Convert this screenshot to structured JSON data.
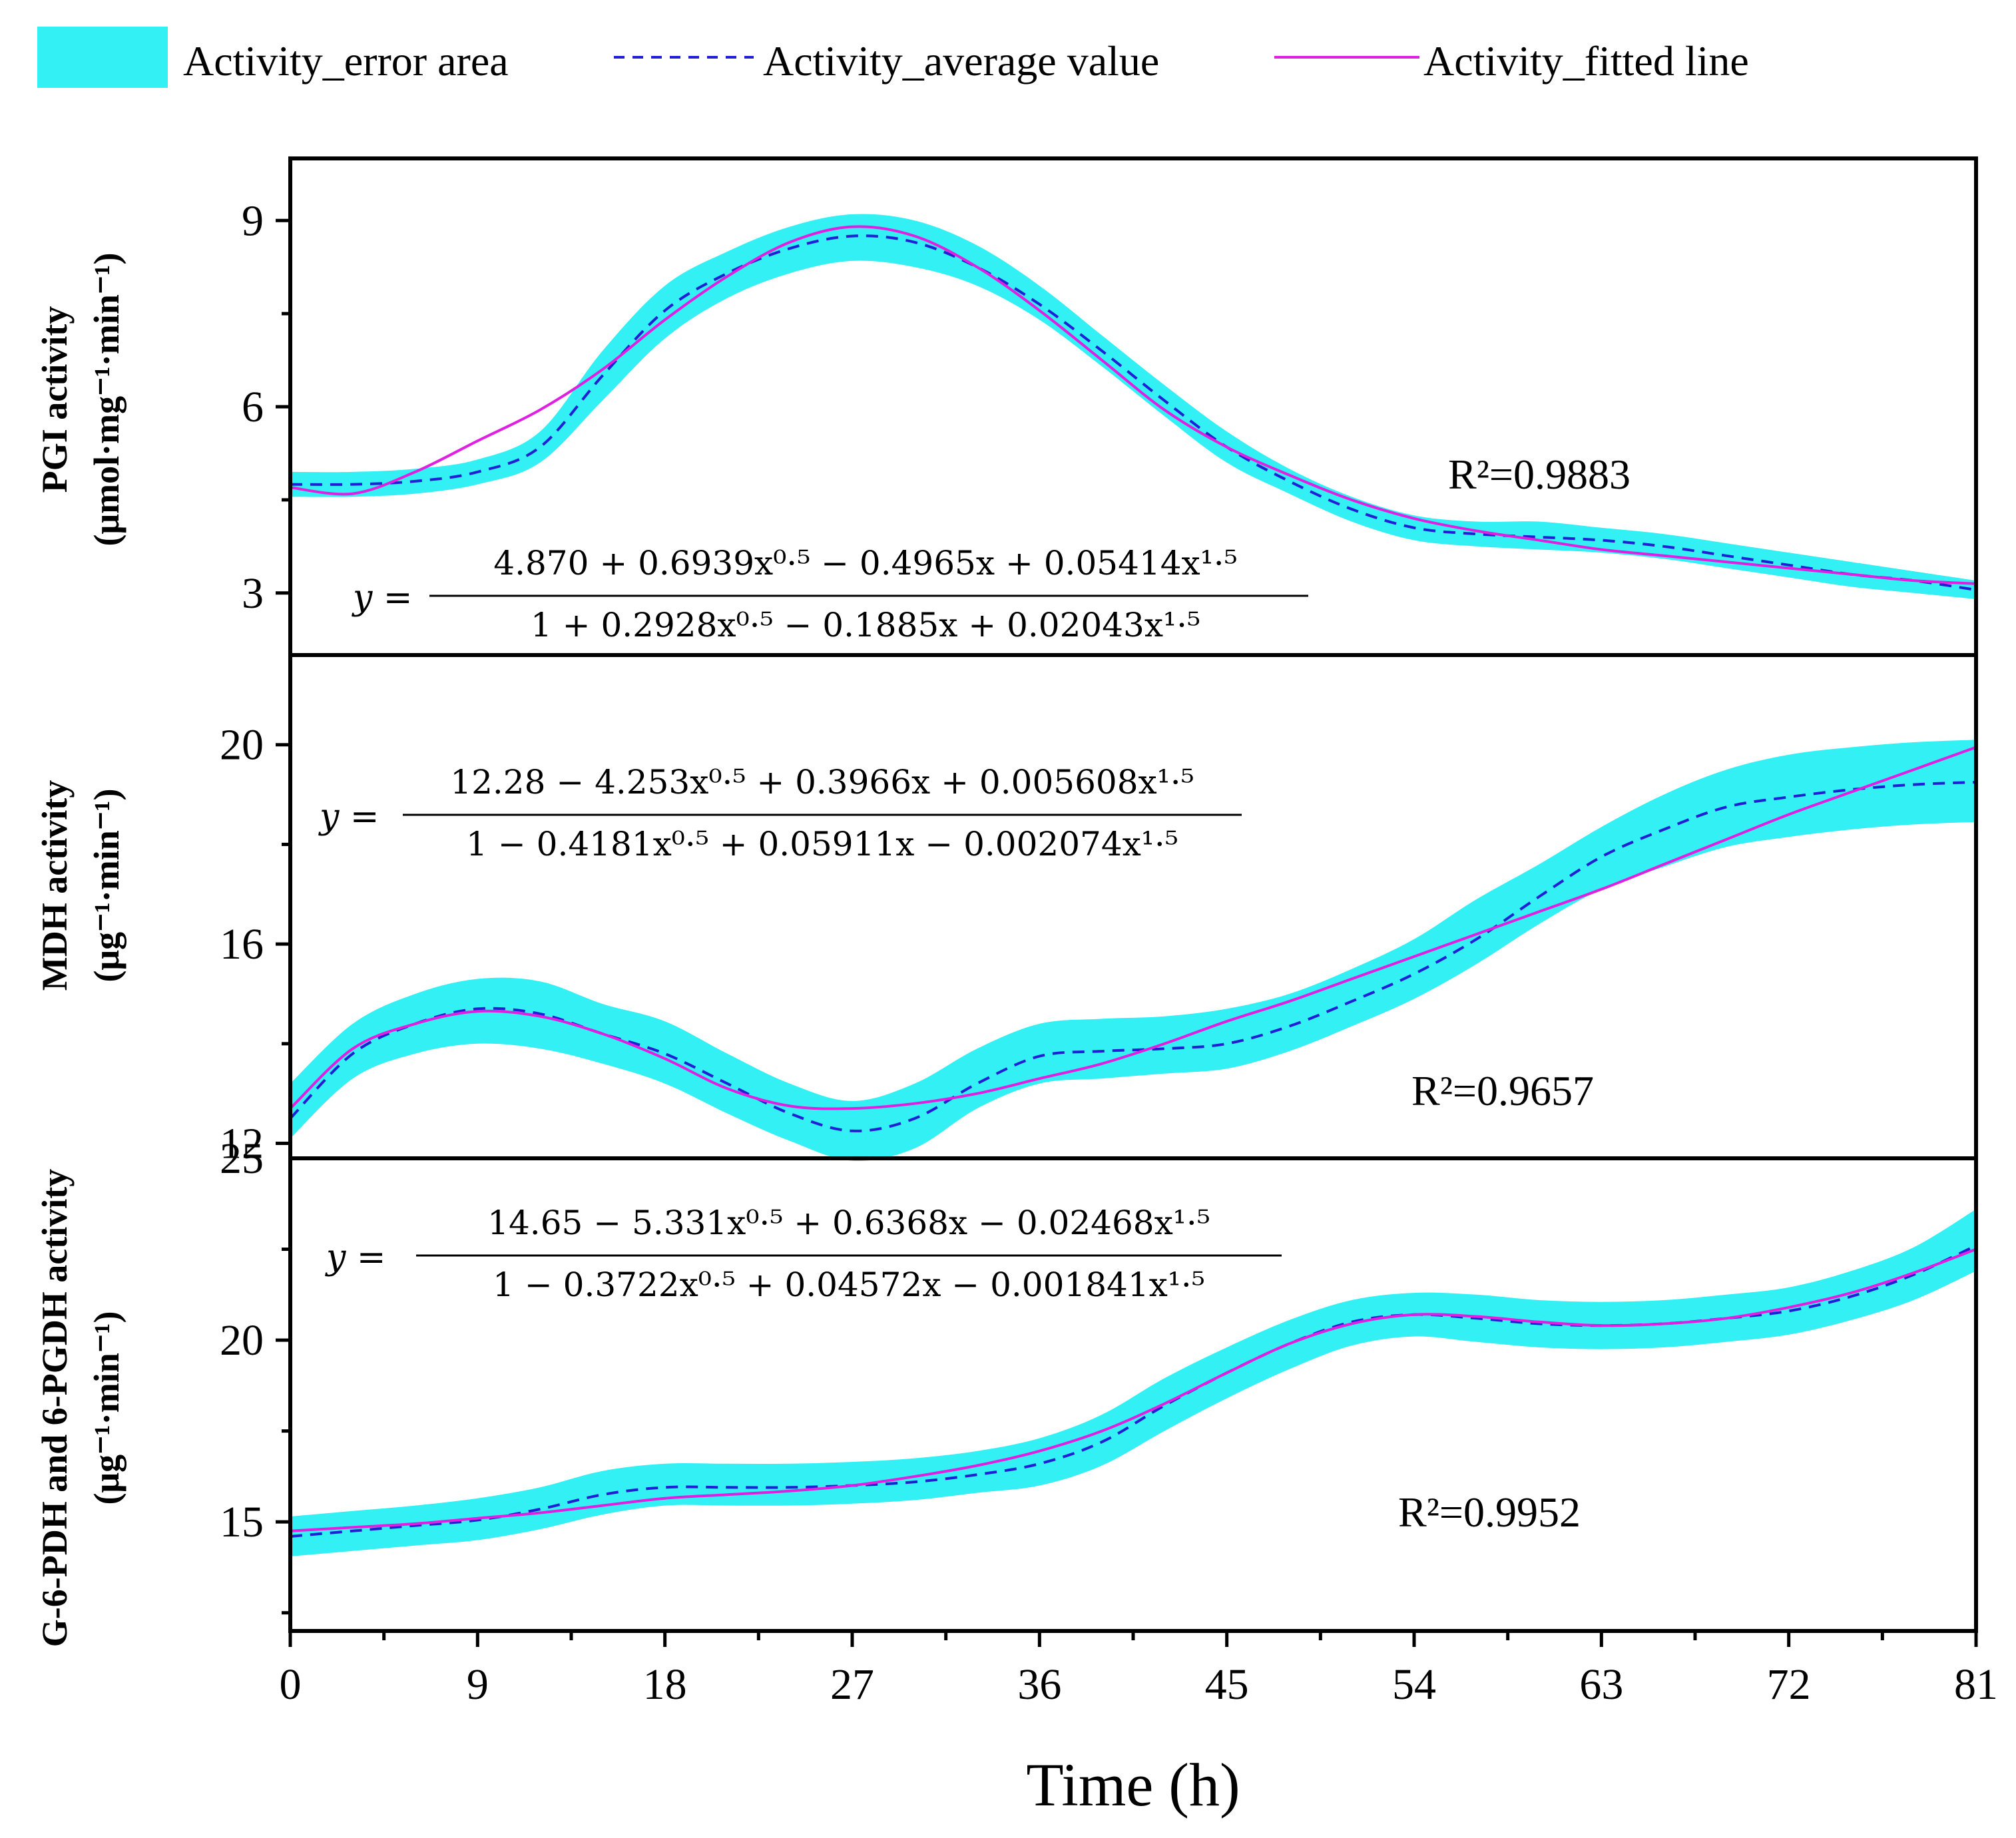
{
  "colors": {
    "error_area": "#33f0f4",
    "average": "#1f1fd6",
    "fitted": "#e020e0",
    "axis": "#000000"
  },
  "legend": {
    "error_area_label": "Activity_error area",
    "average_label": "Activity_average value",
    "fitted_label": "Activity_fitted line"
  },
  "xaxis": {
    "label": "Time (h)",
    "ticks": [
      "0",
      "9",
      "18",
      "27",
      "36",
      "45",
      "54",
      "63",
      "72",
      "81"
    ]
  },
  "chart_data": [
    {
      "type": "area",
      "name": "PGI",
      "ylabel_line1": "PGI activity",
      "ylabel_line2": "(μmol·mg⁻¹·min⁻¹)",
      "xlim": [
        0,
        81
      ],
      "ylim": [
        2,
        10
      ],
      "yticks": [
        3,
        6,
        9
      ],
      "ytick_labels": [
        "3",
        "6",
        "9"
      ],
      "r2": "R²=0.9883",
      "equation": {
        "lhs": "y =",
        "numerator": "4.870 + 0.6939x⁰·⁵ − 0.4965x + 0.05414x¹·⁵",
        "denominator": "1 + 0.2928x⁰·⁵ − 0.1885x + 0.02043x¹·⁵"
      },
      "x": [
        0,
        3,
        6,
        9,
        12,
        15,
        18,
        21,
        24,
        27,
        30,
        33,
        36,
        39,
        42,
        45,
        48,
        51,
        54,
        57,
        60,
        63,
        66,
        69,
        72,
        75,
        78,
        81
      ],
      "average": [
        4.75,
        4.75,
        4.8,
        4.95,
        5.35,
        6.5,
        7.55,
        8.15,
        8.55,
        8.75,
        8.65,
        8.25,
        7.65,
        6.9,
        6.1,
        5.35,
        4.8,
        4.35,
        4.05,
        3.95,
        3.9,
        3.85,
        3.75,
        3.6,
        3.45,
        3.3,
        3.2,
        3.05
      ],
      "lower": [
        4.55,
        4.55,
        4.6,
        4.75,
        5.1,
        6.1,
        7.1,
        7.75,
        8.15,
        8.35,
        8.25,
        7.95,
        7.4,
        6.65,
        5.85,
        5.1,
        4.6,
        4.15,
        3.85,
        3.75,
        3.7,
        3.65,
        3.55,
        3.4,
        3.25,
        3.1,
        3.0,
        2.9
      ],
      "upper": [
        4.95,
        4.95,
        5.0,
        5.15,
        5.6,
        6.9,
        7.95,
        8.5,
        8.9,
        9.1,
        9.0,
        8.6,
        7.95,
        7.15,
        6.35,
        5.6,
        5.0,
        4.55,
        4.25,
        4.15,
        4.15,
        4.05,
        3.95,
        3.8,
        3.65,
        3.5,
        3.35,
        3.2
      ],
      "fitted": [
        4.7,
        4.6,
        4.95,
        5.45,
        5.95,
        6.6,
        7.4,
        8.1,
        8.65,
        8.9,
        8.75,
        8.25,
        7.55,
        6.75,
        5.95,
        5.35,
        4.9,
        4.5,
        4.2,
        4.0,
        3.85,
        3.7,
        3.6,
        3.5,
        3.4,
        3.3,
        3.2,
        3.15
      ]
    },
    {
      "type": "area",
      "name": "MDH",
      "ylabel_line1": "MDH activity",
      "ylabel_line2": "(μg⁻¹·min⁻¹)",
      "xlim": [
        0,
        81
      ],
      "ylim": [
        11.7,
        21.8
      ],
      "yticks": [
        12,
        16,
        20
      ],
      "ytick_labels": [
        "12",
        "16",
        "20"
      ],
      "r2": "R²=0.9657",
      "equation": {
        "lhs": "y =",
        "numerator": "12.28 − 4.253x⁰·⁵ + 0.3966x + 0.005608x¹·⁵",
        "denominator": "1 − 0.4181x⁰·⁵ + 0.05911x − 0.002074x¹·⁵"
      },
      "x": [
        0,
        3,
        6,
        9,
        12,
        15,
        18,
        21,
        24,
        27,
        30,
        33,
        36,
        39,
        42,
        45,
        48,
        51,
        54,
        57,
        60,
        63,
        66,
        69,
        72,
        75,
        78,
        81
      ],
      "average": [
        12.5,
        13.8,
        14.4,
        14.7,
        14.6,
        14.2,
        13.8,
        13.2,
        12.6,
        12.25,
        12.5,
        13.2,
        13.75,
        13.85,
        13.9,
        14.0,
        14.35,
        14.85,
        15.4,
        16.1,
        16.95,
        17.75,
        18.3,
        18.75,
        18.95,
        19.1,
        19.2,
        19.25
      ],
      "lower": [
        12.1,
        13.3,
        13.8,
        14.0,
        13.9,
        13.6,
        13.2,
        12.6,
        12.05,
        11.65,
        11.9,
        12.7,
        13.2,
        13.3,
        13.4,
        13.5,
        13.85,
        14.35,
        14.9,
        15.6,
        16.4,
        17.1,
        17.55,
        17.95,
        18.15,
        18.3,
        18.4,
        18.45
      ],
      "upper": [
        13.2,
        14.4,
        15.0,
        15.3,
        15.25,
        14.8,
        14.45,
        13.8,
        13.2,
        12.85,
        13.2,
        13.9,
        14.4,
        14.5,
        14.55,
        14.7,
        15.0,
        15.5,
        16.1,
        16.9,
        17.6,
        18.35,
        19.0,
        19.5,
        19.8,
        19.95,
        20.05,
        20.1
      ],
      "fitted": [
        12.7,
        13.9,
        14.4,
        14.65,
        14.55,
        14.2,
        13.7,
        13.1,
        12.75,
        12.7,
        12.8,
        13.0,
        13.3,
        13.6,
        14.0,
        14.45,
        14.85,
        15.3,
        15.75,
        16.2,
        16.65,
        17.1,
        17.6,
        18.1,
        18.6,
        19.05,
        19.5,
        19.95
      ]
    },
    {
      "type": "area",
      "name": "G-6-PDH and 6-PGDH",
      "ylabel_line1": "G-6-PDH and 6-PGDH activity",
      "ylabel_line2": "(μg⁻¹·min⁻¹)",
      "xlim": [
        0,
        81
      ],
      "ylim": [
        12,
        25
      ],
      "yticks": [
        15,
        20,
        25
      ],
      "ytick_labels": [
        "15",
        "20",
        "25"
      ],
      "r2": "R²=0.9952",
      "equation": {
        "lhs": "y =",
        "numerator": "14.65 − 5.331x⁰·⁵ + 0.6368x − 0.02468x¹·⁵",
        "denominator": "1 − 0.3722x⁰·⁵ + 0.04572x − 0.001841x¹·⁵"
      },
      "x": [
        0,
        3,
        6,
        9,
        12,
        15,
        18,
        21,
        24,
        27,
        30,
        33,
        36,
        39,
        42,
        45,
        48,
        51,
        54,
        57,
        60,
        63,
        66,
        69,
        72,
        75,
        78,
        81
      ],
      "average": [
        14.6,
        14.75,
        14.9,
        15.05,
        15.35,
        15.75,
        15.95,
        15.95,
        15.95,
        16.0,
        16.1,
        16.3,
        16.6,
        17.2,
        18.2,
        19.1,
        19.9,
        20.5,
        20.7,
        20.6,
        20.45,
        20.4,
        20.45,
        20.6,
        20.8,
        21.2,
        21.8,
        22.6
      ],
      "lower": [
        14.05,
        14.2,
        14.35,
        14.5,
        14.8,
        15.2,
        15.45,
        15.45,
        15.45,
        15.5,
        15.6,
        15.8,
        16.0,
        16.55,
        17.5,
        18.4,
        19.2,
        19.85,
        20.1,
        19.95,
        19.8,
        19.75,
        19.8,
        19.95,
        20.15,
        20.55,
        21.1,
        21.9
      ],
      "upper": [
        15.15,
        15.3,
        15.45,
        15.65,
        15.95,
        16.4,
        16.6,
        16.6,
        16.6,
        16.65,
        16.75,
        16.95,
        17.3,
        17.95,
        18.95,
        19.8,
        20.55,
        21.1,
        21.3,
        21.25,
        21.1,
        21.05,
        21.1,
        21.25,
        21.45,
        21.9,
        22.55,
        23.6
      ],
      "fitted": [
        14.75,
        14.85,
        14.95,
        15.1,
        15.25,
        15.45,
        15.65,
        15.75,
        15.85,
        16.0,
        16.25,
        16.55,
        16.95,
        17.5,
        18.25,
        19.1,
        19.9,
        20.45,
        20.7,
        20.65,
        20.5,
        20.4,
        20.45,
        20.6,
        20.9,
        21.3,
        21.85,
        22.5
      ]
    }
  ]
}
